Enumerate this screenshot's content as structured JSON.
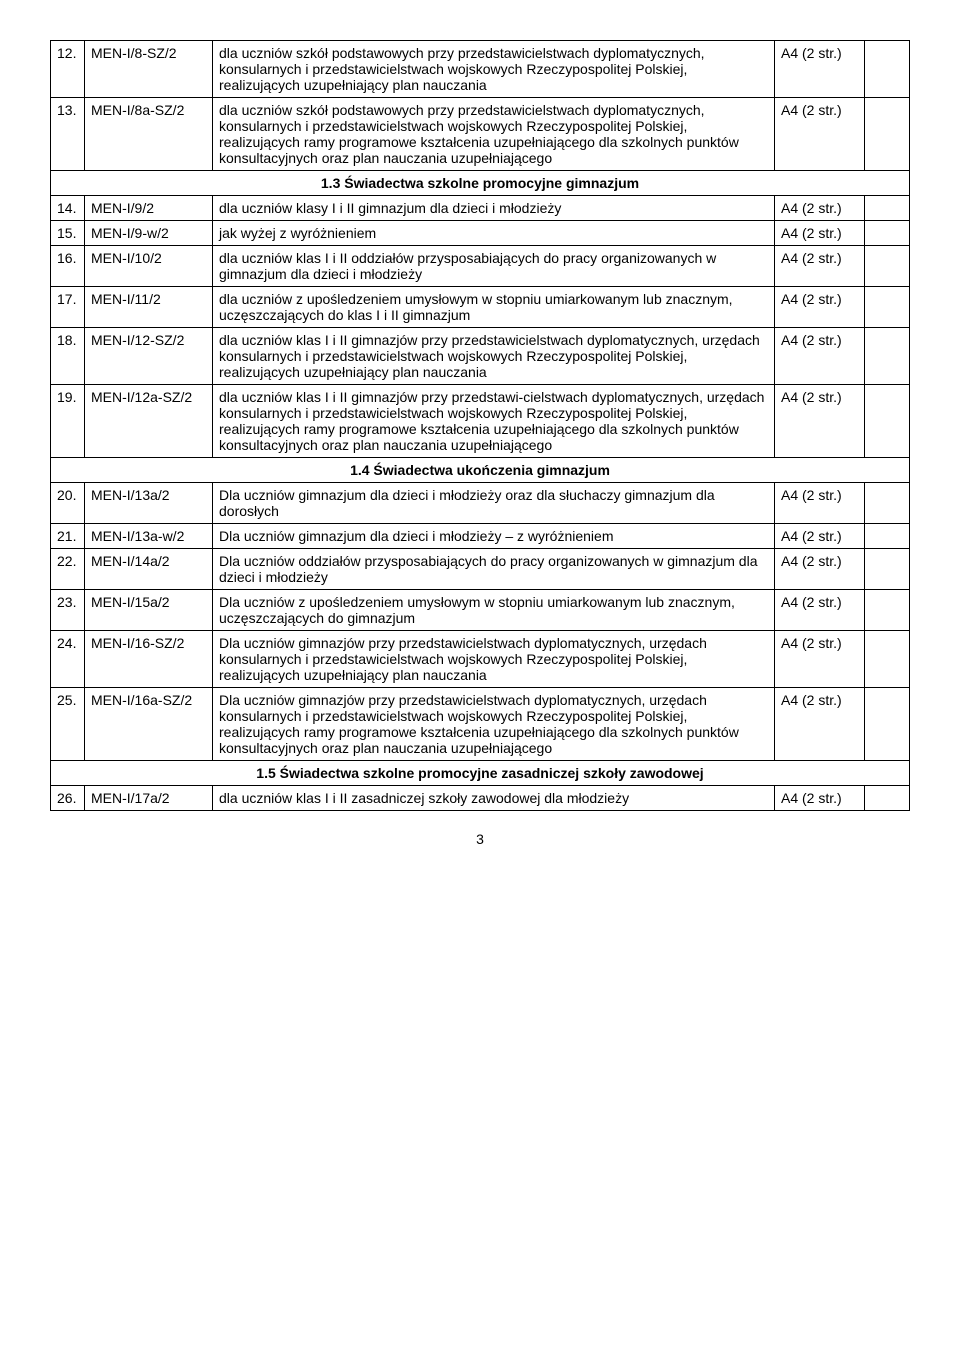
{
  "format_label": "A4 (2 str.)",
  "page_number": "3",
  "rows": [
    {
      "num": "12.",
      "code": "MEN-I/8-SZ/2",
      "desc": "dla uczniów szkół podstawowych przy przedstawicielstwach dyplomatycznych, konsularnych i przedstawicielstwach wojskowych Rzeczypospolitej Polskiej, realizujących uzupełniający plan nauczania",
      "format": "A4 (2 str.)"
    },
    {
      "num": "13.",
      "code": "MEN-I/8a-SZ/2",
      "desc": "dla uczniów szkół podstawowych przy przedstawicielstwach dyplomatycznych, konsularnych i przedstawicielstwach wojskowych Rzeczypospolitej Polskiej, realizujących ramy programowe kształcenia uzupełniającego dla szkolnych punktów konsultacyjnych oraz plan nauczania uzupełniającego",
      "format": "A4 (2 str.)"
    }
  ],
  "section_1_3": "1.3 Świadectwa szkolne promocyjne gimnazjum",
  "rows2": [
    {
      "num": "14.",
      "code": "MEN-I/9/2",
      "desc": "dla uczniów klasy I i II gimnazjum dla dzieci i młodzieży",
      "format": "A4 (2 str.)"
    },
    {
      "num": "15.",
      "code": "MEN-I/9-w/2",
      "desc": "jak wyżej z wyróżnieniem",
      "format": "A4 (2 str.)"
    },
    {
      "num": "16.",
      "code": "MEN-I/10/2",
      "desc": "dla uczniów klas I i II oddziałów przysposabiających do pracy organizowanych w gimnazjum dla dzieci i młodzieży",
      "format": "A4 (2 str.)"
    },
    {
      "num": "17.",
      "code": "MEN-I/11/2",
      "desc": "dla uczniów z upośledzeniem umysłowym w stopniu umiarkowanym lub znacznym, uczęszczających do klas I i II gimnazjum",
      "format": "A4 (2 str.)"
    },
    {
      "num": "18.",
      "code": "MEN-I/12-SZ/2",
      "desc": "dla uczniów klas I i II gimnazjów przy przedstawicielstwach dyplomatycznych, urzędach konsularnych i przedstawicielstwach wojskowych Rzeczypospolitej Polskiej, realizujących uzupełniający plan nauczania",
      "format": "A4 (2 str.)"
    },
    {
      "num": "19.",
      "code": "MEN-I/12a-SZ/2",
      "desc": "dla uczniów klas I i II gimnazjów przy przedstawi-cielstwach dyplomatycznych, urzędach konsularnych i przedstawicielstwach wojskowych Rzeczypospolitej Polskiej, realizujących ramy programowe kształcenia uzupełniającego dla szkolnych punktów konsultacyjnych oraz plan nauczania uzupełniającego",
      "format": "A4 (2 str.)"
    }
  ],
  "section_1_4": "1.4 Świadectwa ukończenia gimnazjum",
  "rows3": [
    {
      "num": "20.",
      "code": "MEN-I/13a/2",
      "desc": "Dla uczniów gimnazjum dla dzieci i młodzieży oraz dla słuchaczy gimnazjum dla dorosłych",
      "format": "A4 (2 str.)"
    },
    {
      "num": "21.",
      "code": "MEN-I/13a-w/2",
      "desc": "Dla uczniów gimnazjum dla dzieci i młodzieży – z wyróżnieniem",
      "format": "A4 (2 str.)"
    },
    {
      "num": "22.",
      "code": "MEN-I/14a/2",
      "desc": "Dla uczniów oddziałów przysposabiających do pracy organizowanych w gimnazjum dla dzieci i młodzieży",
      "format": "A4 (2 str.)"
    },
    {
      "num": "23.",
      "code": "MEN-I/15a/2",
      "desc": "Dla uczniów z upośledzeniem umysłowym w stopniu umiarkowanym lub znacznym, uczęszczających do gimnazjum",
      "format": "A4 (2 str.)"
    },
    {
      "num": "24.",
      "code": "MEN-I/16-SZ/2",
      "desc": "Dla uczniów gimnazjów przy przedstawicielstwach dyplomatycznych, urzędach konsularnych i przedstawicielstwach wojskowych Rzeczypospolitej Polskiej, realizujących uzupełniający plan nauczania",
      "format": "A4 (2 str.)"
    },
    {
      "num": "25.",
      "code": "MEN-I/16a-SZ/2",
      "desc": "Dla uczniów gimnazjów przy przedstawicielstwach dyplomatycznych, urzędach konsularnych i przedstawicielstwach wojskowych Rzeczypospolitej Polskiej, realizujących ramy programowe kształcenia uzupełniającego dla szkolnych punktów konsultacyjnych oraz plan nauczania uzupełniającego",
      "format": "A4 (2 str.)"
    }
  ],
  "section_1_5": "1.5 Świadectwa szkolne promocyjne zasadniczej szkoły zawodowej",
  "rows4": [
    {
      "num": "26.",
      "code": "MEN-I/17a/2",
      "desc": "dla uczniów klas I i II zasadniczej szkoły zawodowej dla młodzieży",
      "format": "A4 (2 str.)"
    }
  ]
}
